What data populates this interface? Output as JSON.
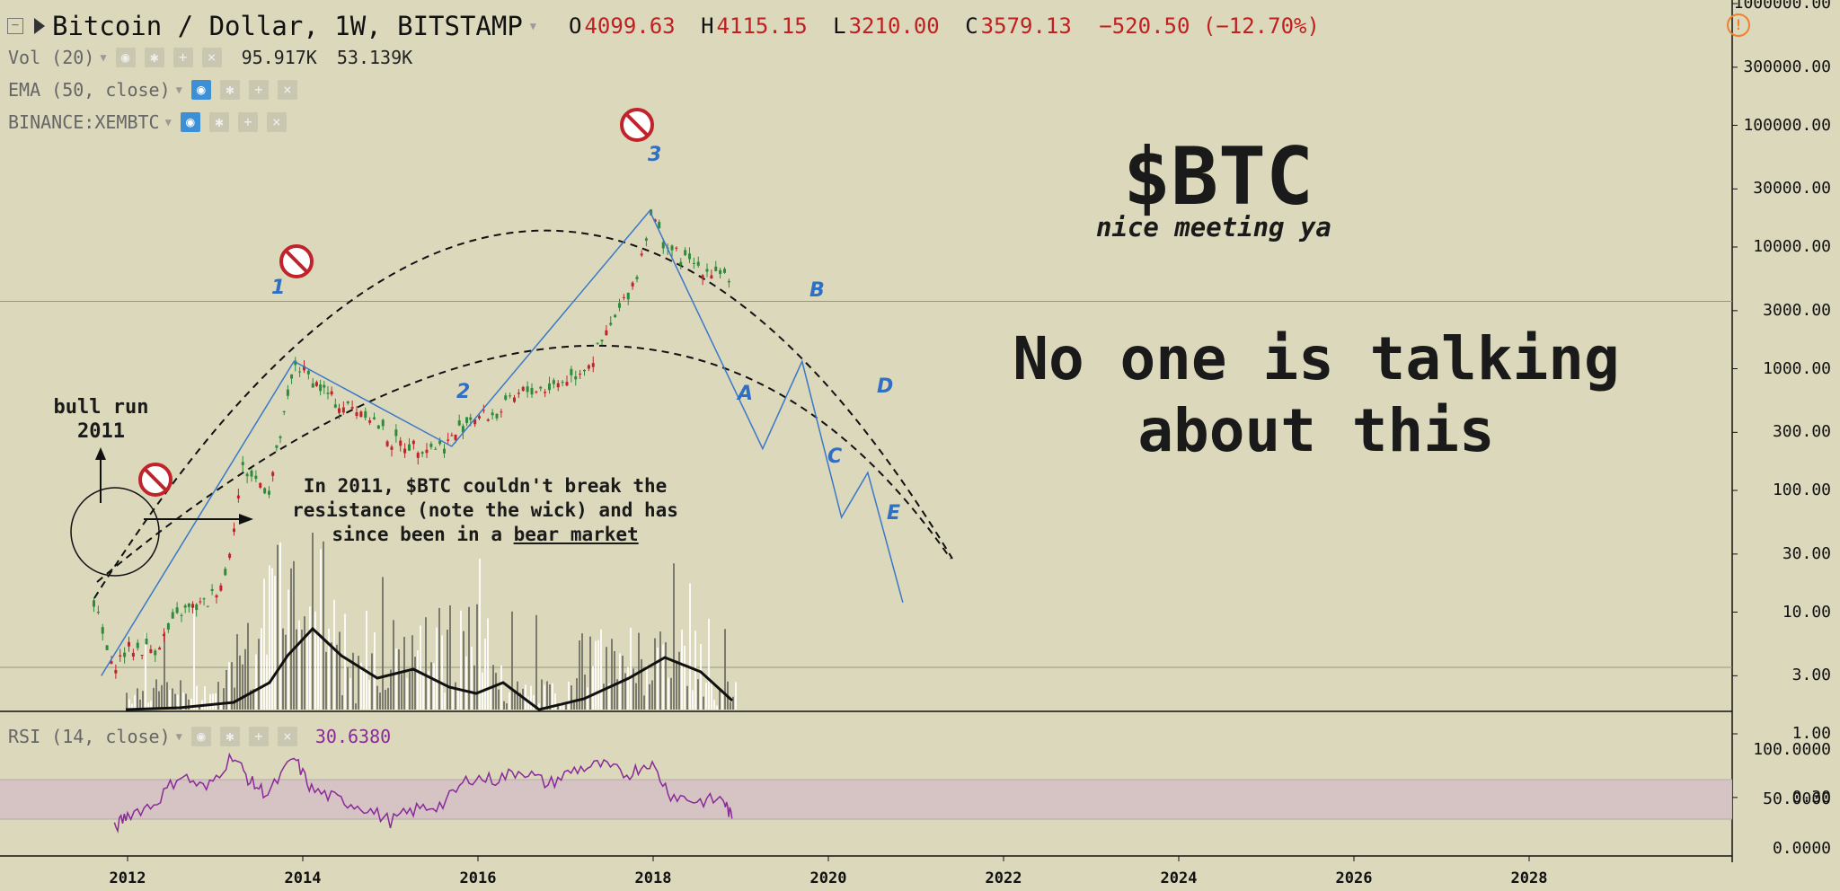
{
  "header": {
    "title": "Bitcoin / Dollar, 1W, BITSTAMP",
    "open_label": "O",
    "open": "4099.63",
    "high_label": "H",
    "high": "4115.15",
    "low_label": "L",
    "low": "3210.00",
    "close_label": "C",
    "close": "3579.13",
    "change": "−520.50 (−12.70%)"
  },
  "indicators": {
    "volume": {
      "label": "Vol (20)",
      "value1": "95.917K",
      "value2": "53.139K"
    },
    "ema": {
      "label": "EMA (50, close)"
    },
    "binance": {
      "label": "BINANCE:XEMBTC"
    },
    "rsi": {
      "label": "RSI (14, close)",
      "value": "30.6380"
    }
  },
  "annotations": {
    "ticker": "$BTC",
    "tagline": "nice meeting ya",
    "headline_line1": "No one is talking",
    "headline_line2": "about this",
    "bull_run_line1": "bull run",
    "bull_run_line2": "2011",
    "note_line1": "In 2011, $BTC couldn't break the",
    "note_line2": "resistance (note the wick) and has",
    "note_line3_prefix": "since been in a ",
    "note_line3_underlined": "bear market",
    "wave_labels": [
      "1",
      "2",
      "3",
      "A",
      "B",
      "C",
      "D",
      "E"
    ]
  },
  "colors": {
    "background": "#dbd8bb",
    "up_candle": "#2e8b3a",
    "down_candle": "#c0232a",
    "wave_line": "#3a78c8",
    "rsi_line": "#8a2a9a",
    "rsi_band": "#d4c2c4",
    "no_sign": "#c0232a",
    "warning": "#f08030"
  },
  "chart_data": [
    {
      "type": "line",
      "title": "Bitcoin / Dollar, 1W, BITSTAMP",
      "scale": "log",
      "y_ticks": [
        "1000000.00",
        "300000.00",
        "100000.00",
        "30000.00",
        "10000.00",
        "3000.00",
        "1000.00",
        "300.00",
        "100.00",
        "30.00",
        "10.00",
        "3.00",
        "1.00",
        "0.30"
      ],
      "x_ticks": [
        "2012",
        "2014",
        "2016",
        "2018",
        "2020",
        "2022",
        "2024",
        "2026",
        "2028"
      ],
      "series": [
        {
          "name": "",
          "x": [
            2011.6,
            2011.8,
            2012.0,
            2012.3,
            2012.6,
            2012.9,
            2013.1,
            2013.3,
            2013.6,
            2013.9,
            2014.1,
            2014.4,
            2014.7,
            2015.0,
            2015.3,
            2015.6,
            2015.9,
            2016.2,
            2016.5,
            2016.8,
            2017.1,
            2017.3,
            2017.6,
            2017.8,
            2017.96,
            2018.1,
            2018.3,
            2018.6,
            2018.8,
            2018.9
          ],
          "y": [
            12,
            3.5,
            5,
            5,
            10,
            12,
            20,
            150,
            100,
            1100,
            800,
            500,
            450,
            250,
            230,
            230,
            400,
            420,
            650,
            700,
            900,
            1200,
            3000,
            6000,
            19000,
            11000,
            8000,
            6500,
            6300,
            3579
          ]
        },
        {
          "name": "",
          "x": [
            2011.7,
            2013.9,
            2015.7,
            2017.96,
            2019.25,
            2019.7,
            2020.15,
            2020.45,
            2020.85
          ],
          "y": [
            3,
            1150,
            230,
            19800,
            220,
            1150,
            60,
            140,
            12
          ]
        }
      ],
      "wave_points": [
        "1",
        "2",
        "3",
        "A",
        "B",
        "C",
        "D",
        "E"
      ]
    },
    {
      "type": "line",
      "title": "RSI (14, close)",
      "y_ticks": [
        "100.0000",
        "50.0000",
        "0.0000"
      ],
      "band": [
        30,
        70
      ],
      "series": [
        {
          "name": "",
          "x": [
            2011.85,
            2012.0,
            2012.3,
            2012.6,
            2012.9,
            2013.2,
            2013.4,
            2013.6,
            2013.9,
            2014.1,
            2014.4,
            2014.7,
            2015.0,
            2015.3,
            2015.6,
            2015.9,
            2016.2,
            2016.5,
            2016.8,
            2017.1,
            2017.4,
            2017.7,
            2017.96,
            2018.2,
            2018.5,
            2018.8,
            2018.9
          ],
          "y": [
            20,
            35,
            45,
            75,
            60,
            95,
            68,
            55,
            92,
            60,
            50,
            42,
            28,
            40,
            45,
            72,
            70,
            80,
            65,
            80,
            85,
            75,
            88,
            55,
            48,
            50,
            30.6
          ]
        }
      ]
    }
  ]
}
